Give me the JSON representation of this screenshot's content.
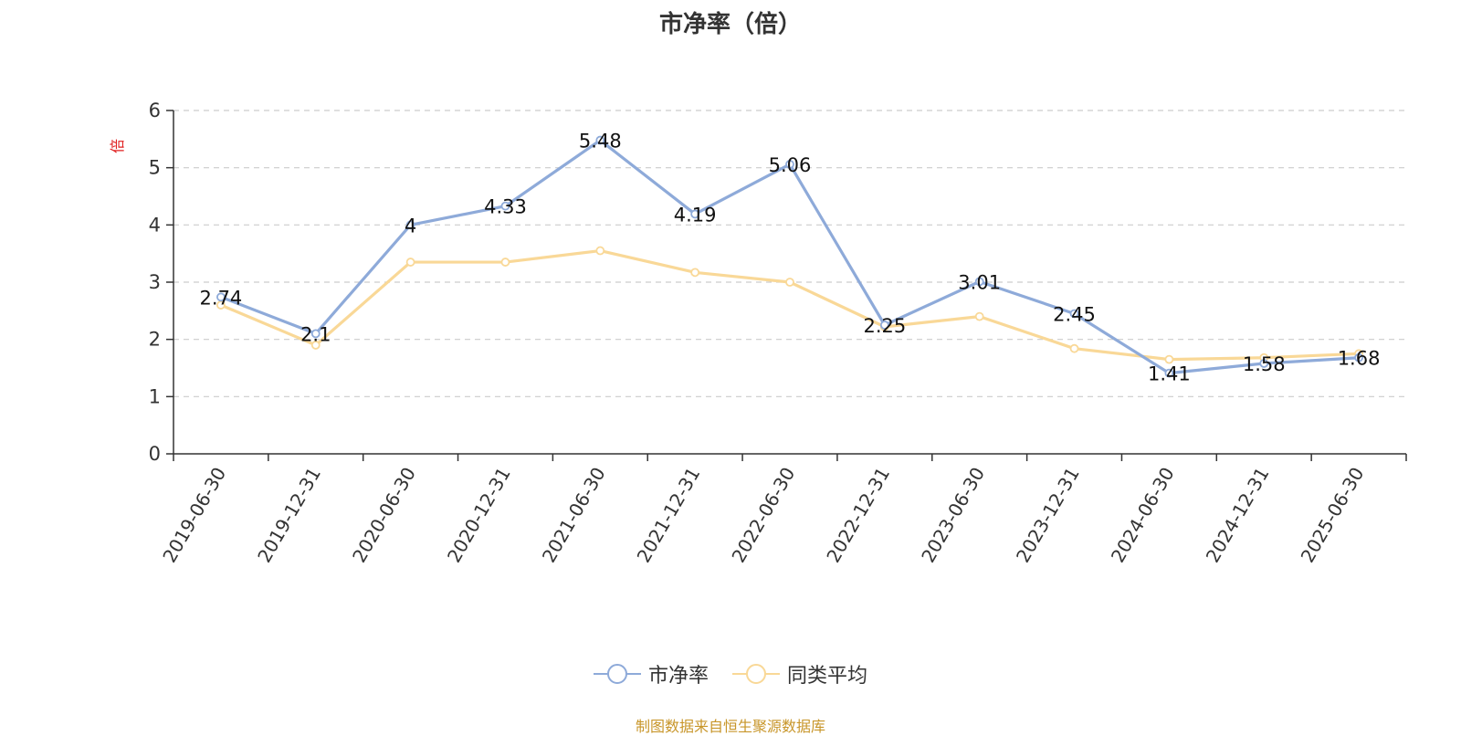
{
  "chart_data": {
    "type": "line",
    "title": "市净率（倍）",
    "ylabel": "倍",
    "xlabel": "",
    "categories": [
      "2019-06-30",
      "2019-12-31",
      "2020-06-30",
      "2020-12-31",
      "2021-06-30",
      "2021-12-31",
      "2022-06-30",
      "2022-12-31",
      "2023-06-30",
      "2023-12-31",
      "2024-06-30",
      "2024-12-31",
      "2025-06-30"
    ],
    "ylim": [
      0,
      6
    ],
    "yticks": [
      0,
      1,
      2,
      3,
      4,
      5,
      6
    ],
    "grid": true,
    "legend_position": "bottom",
    "series": [
      {
        "name": "市净率",
        "color": "#8eaad9",
        "values": [
          2.74,
          2.1,
          4,
          4.33,
          5.48,
          4.19,
          5.06,
          2.25,
          3.01,
          2.45,
          1.41,
          1.58,
          1.68
        ],
        "labels": [
          "2.74",
          "2.1",
          "4",
          "4.33",
          "5.48",
          "4.19",
          "5.06",
          "2.25",
          "3.01",
          "2.45",
          "1.41",
          "1.58",
          "1.68"
        ]
      },
      {
        "name": "同类平均",
        "color": "#f9d897",
        "values": [
          2.6,
          1.9,
          3.35,
          3.35,
          3.55,
          3.17,
          3.0,
          2.22,
          2.4,
          1.84,
          1.65,
          1.68,
          1.75
        ]
      }
    ]
  },
  "footer": {
    "source": "制图数据来自恒生聚源数据库"
  }
}
